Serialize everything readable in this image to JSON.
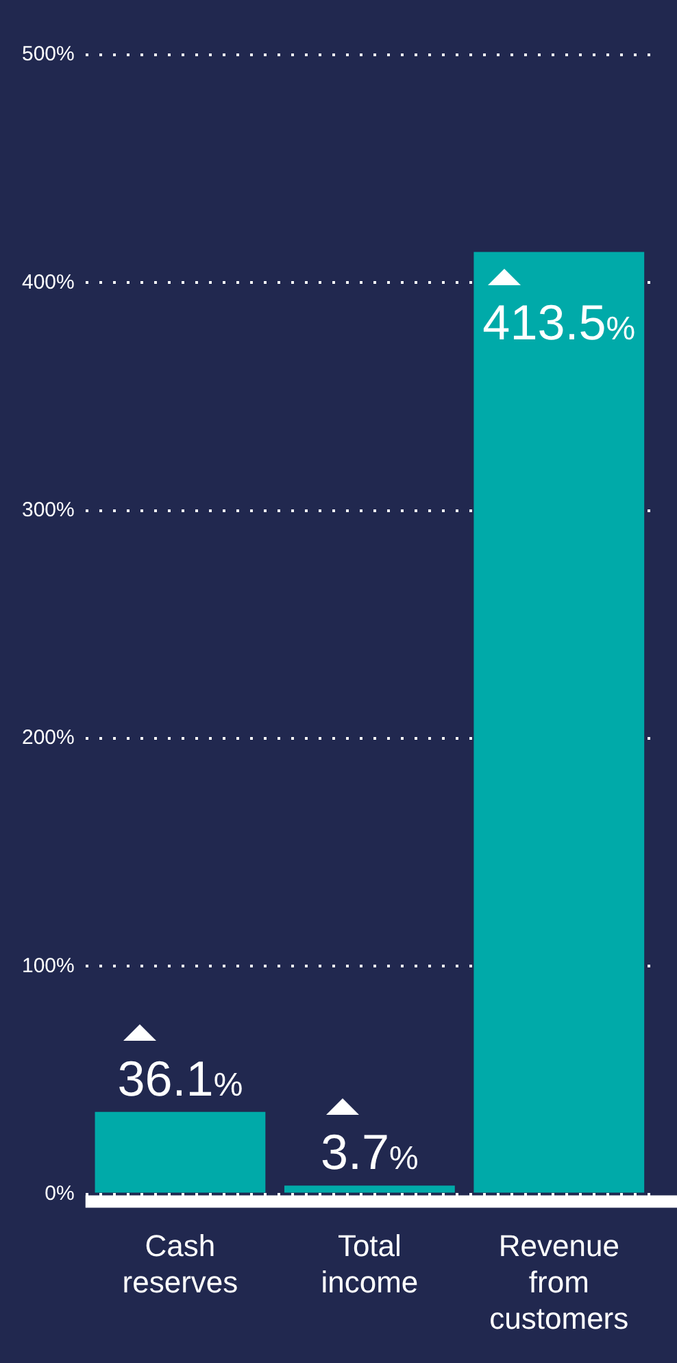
{
  "chart_data": {
    "type": "bar",
    "categories": [
      "Cash reserves",
      "Total income",
      "Revenue from customers"
    ],
    "values": [
      36.1,
      3.7,
      413.5
    ],
    "value_labels": [
      "36.1%",
      "3.7%",
      "413.5%"
    ],
    "color": "#00aaa9",
    "ylim": [
      0,
      500
    ],
    "yticks": [
      {
        "value": 0,
        "label": "0%"
      },
      {
        "value": 100,
        "label": "100%"
      },
      {
        "value": 200,
        "label": "200%"
      },
      {
        "value": 300,
        "label": "300%"
      },
      {
        "value": 400,
        "label": "400%"
      },
      {
        "value": 500,
        "label": "500%"
      }
    ],
    "grid": "y"
  }
}
